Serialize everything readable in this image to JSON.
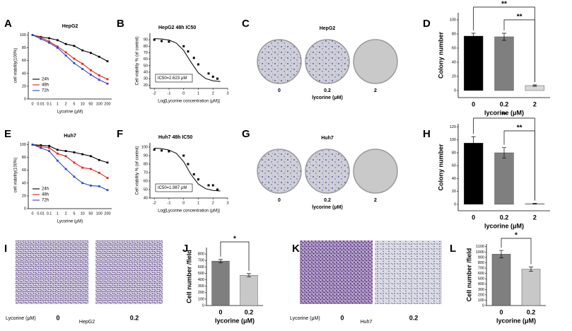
{
  "figure": {
    "panels": [
      "A",
      "B",
      "C",
      "D",
      "E",
      "F",
      "G",
      "H",
      "I",
      "J",
      "K",
      "L"
    ],
    "plates": [
      {
        "title": "HepG2",
        "doses": [
          "0",
          "0.2",
          "2"
        ],
        "xlabel": "lycorine (μM)"
      },
      {
        "title": "Huh7",
        "doses": [
          "0",
          "0.2",
          "2"
        ],
        "xlabel": "lycorine (μM)"
      }
    ],
    "micrographs": [
      {
        "title": "HepG2",
        "xlabel": "Lycorine (μM)",
        "doses": [
          "0",
          "0.2"
        ]
      },
      {
        "title": "Huh7",
        "xlabel": "Lycorine (μM)",
        "doses": [
          "0",
          "0.2"
        ]
      }
    ]
  },
  "chart_data": [
    {
      "type": "line",
      "title": "HepG2",
      "xlabel": "Lycorine (μM)",
      "ylabel": "cell viability(100%)",
      "categories": [
        "0",
        "0.01",
        "0.1",
        "1",
        "2",
        "5",
        "10",
        "50",
        "100",
        "200"
      ],
      "ylim": [
        0,
        105
      ],
      "yticks": [
        0,
        20,
        40,
        60,
        80,
        100
      ],
      "legend": "lower left",
      "series": [
        {
          "name": "24h",
          "color": "#000000",
          "values": [
            100,
            97,
            95,
            92,
            86,
            83,
            76,
            72,
            66,
            59
          ]
        },
        {
          "name": "48h",
          "color": "#e0201b",
          "values": [
            100,
            96,
            90,
            82,
            73,
            63,
            55,
            45,
            37,
            31
          ]
        },
        {
          "name": "72h",
          "color": "#2a49c7",
          "values": [
            100,
            94,
            88,
            80,
            68,
            56,
            47,
            38,
            30,
            24
          ]
        }
      ]
    },
    {
      "type": "scatter",
      "title": "HepG2 48h IC50",
      "xlabel": "Log[Lycorine concentration (μM)]",
      "ylabel": "Cell viability % (of control)",
      "annotation": "IC50=2.623 μM",
      "x": [
        -2,
        -1.5,
        -1,
        0,
        0.3,
        0.7,
        1,
        1.7,
        2,
        2.3
      ],
      "values": [
        90,
        88,
        87,
        80,
        72,
        62,
        52,
        38,
        33,
        30
      ],
      "fit": {
        "x": [
          -2,
          -1.5,
          -1,
          -0.5,
          0,
          0.5,
          1,
          1.5,
          2,
          2.5
        ],
        "values": [
          91.7,
          91.2,
          89.5,
          84.8,
          73.5,
          55.5,
          39,
          30.2,
          26.7,
          25.6
        ]
      },
      "xlim": [
        -2.3,
        3
      ],
      "xticks": [
        -2,
        -1,
        0,
        1,
        2,
        3
      ],
      "ylim": [
        15,
        100
      ],
      "yticks": [
        20,
        30,
        40,
        50,
        60,
        70,
        80,
        90
      ],
      "color": "#000000"
    },
    {
      "type": "bar",
      "xlabel": "lycorine (μM)",
      "ylabel": "Colony number",
      "categories": [
        "0",
        "0.2",
        "2"
      ],
      "values": [
        77,
        76,
        7
      ],
      "errors": [
        4,
        5,
        1
      ],
      "colors": [
        "#000000",
        "#7f7f7f",
        "#d9d9d9"
      ],
      "ylim": [
        -10,
        110
      ],
      "yticks": [
        0,
        20,
        40,
        60,
        80,
        100
      ],
      "significance": [
        "**",
        "**"
      ]
    },
    {
      "type": "line",
      "title": "Huh7",
      "xlabel": "Lycorine (μM)",
      "ylabel": "cell viability(100%)",
      "categories": [
        "0",
        "0.01",
        "0.1",
        "1",
        "2",
        "5",
        "10",
        "50",
        "100",
        "200"
      ],
      "ylim": [
        0,
        105
      ],
      "yticks": [
        0,
        20,
        40,
        60,
        80,
        100
      ],
      "legend": "lower left",
      "series": [
        {
          "name": "24h",
          "color": "#000000",
          "values": [
            100,
            99,
            98,
            92,
            90,
            88,
            85,
            82,
            76,
            72
          ]
        },
        {
          "name": "48h",
          "color": "#e0201b",
          "values": [
            100,
            97,
            95,
            86,
            82,
            72,
            64,
            62,
            56,
            48
          ]
        },
        {
          "name": "72h",
          "color": "#2a49c7",
          "values": [
            100,
            95,
            90,
            75,
            62,
            50,
            40,
            36,
            35,
            29
          ]
        }
      ]
    },
    {
      "type": "scatter",
      "title": "Huh7 48h IC50",
      "xlabel": "Log[Lycorine concentration (μM)]",
      "ylabel": "Cell viability % (of control)",
      "annotation": "IC50=1.987 μM",
      "x": [
        -2,
        -1.5,
        -1,
        0,
        0.3,
        0.7,
        1,
        1.7,
        2,
        2.3
      ],
      "values": [
        97,
        96,
        95,
        90,
        80,
        68,
        62,
        55,
        55,
        50
      ],
      "fit": {
        "x": [
          -2,
          -1.5,
          -1,
          -0.5,
          0,
          0.5,
          1,
          1.5,
          2,
          2.5
        ],
        "values": [
          98.8,
          98.2,
          96.5,
          92.7,
          82.9,
          67.8,
          56.5,
          51,
          49,
          48.3
        ]
      },
      "xlim": [
        -2.3,
        3
      ],
      "xticks": [
        -2,
        -1,
        0,
        1,
        2,
        3
      ],
      "ylim": [
        40,
        105
      ],
      "yticks": [
        40,
        50,
        60,
        70,
        80,
        90,
        100
      ],
      "color": "#000000"
    },
    {
      "type": "bar",
      "xlabel": "lycorine (μM)",
      "ylabel": "Colony number",
      "categories": [
        "0",
        "0.2",
        "2"
      ],
      "values": [
        95,
        80,
        1
      ],
      "errors": [
        10,
        8,
        0.5
      ],
      "colors": [
        "#000000",
        "#7f7f7f",
        "#d9d9d9"
      ],
      "ylim": [
        -10,
        125
      ],
      "yticks": [
        0,
        20,
        40,
        60,
        80,
        100,
        120
      ],
      "significance": [
        "**",
        "**"
      ]
    },
    {
      "type": "bar",
      "xlabel": "lycorine (μM)",
      "ylabel": "Cell number /field",
      "categories": [
        "0",
        "0.2"
      ],
      "values": [
        690,
        470
      ],
      "errors": [
        25,
        25
      ],
      "colors": [
        "#7f7f7f",
        "#c8c8c8"
      ],
      "ylim": [
        0,
        900
      ],
      "yticks": [
        0,
        100,
        200,
        300,
        400,
        500,
        600,
        700,
        800
      ],
      "significance": [
        "*"
      ]
    },
    {
      "type": "bar",
      "xlabel": "lycorine (μM)",
      "ylabel": "Cell number /field",
      "categories": [
        "0",
        "0.2"
      ],
      "values": [
        960,
        680
      ],
      "errors": [
        70,
        40
      ],
      "colors": [
        "#7f7f7f",
        "#c8c8c8"
      ],
      "ylim": [
        0,
        1150
      ],
      "yticks": [
        0,
        100,
        200,
        300,
        400,
        500,
        600,
        700,
        800,
        900,
        1000,
        1100
      ],
      "significance": [
        "*"
      ]
    }
  ]
}
